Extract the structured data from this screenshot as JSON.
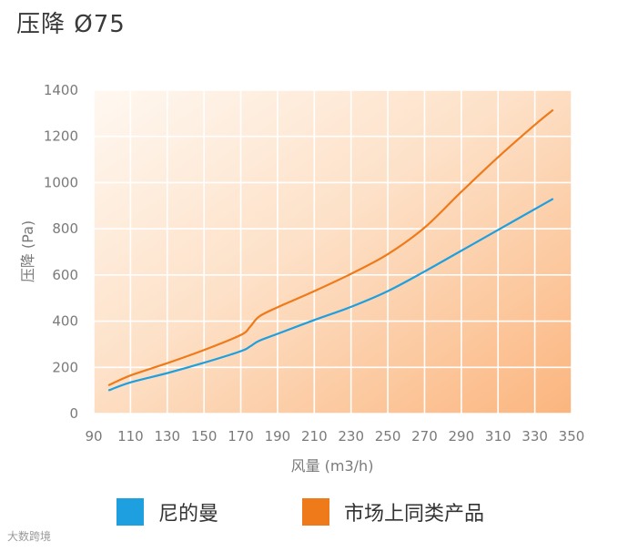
{
  "page": {
    "title": "压降 Ø75"
  },
  "chart_data": {
    "type": "line",
    "title": "",
    "xlabel": "风量 (m3/h)",
    "ylabel": "压降 (Pa)",
    "xlim": [
      90,
      350
    ],
    "ylim": [
      0,
      1400
    ],
    "xticks": [
      90,
      110,
      130,
      150,
      170,
      190,
      210,
      230,
      250,
      270,
      290,
      310,
      330,
      350
    ],
    "yticks": [
      0,
      200,
      400,
      600,
      800,
      1000,
      1200,
      1400
    ],
    "grid": true,
    "legend_position": "bottom",
    "series": [
      {
        "name": "尼的曼",
        "color": "#1e9fe0",
        "x": [
          98,
          110,
          130,
          150,
          170,
          175,
          180,
          190,
          210,
          230,
          250,
          270,
          290,
          310,
          330,
          340
        ],
        "y": [
          100,
          135,
          175,
          220,
          270,
          290,
          315,
          345,
          405,
          462,
          530,
          615,
          705,
          795,
          885,
          930
        ]
      },
      {
        "name": "市场上同类产品",
        "color": "#ef7a1a",
        "x": [
          98,
          110,
          130,
          150,
          170,
          175,
          180,
          190,
          210,
          230,
          250,
          270,
          290,
          310,
          330,
          340
        ],
        "y": [
          122,
          165,
          218,
          275,
          340,
          375,
          420,
          460,
          530,
          605,
          690,
          805,
          960,
          1110,
          1250,
          1315
        ]
      }
    ]
  },
  "watermark": {
    "text": "大数跨境"
  }
}
